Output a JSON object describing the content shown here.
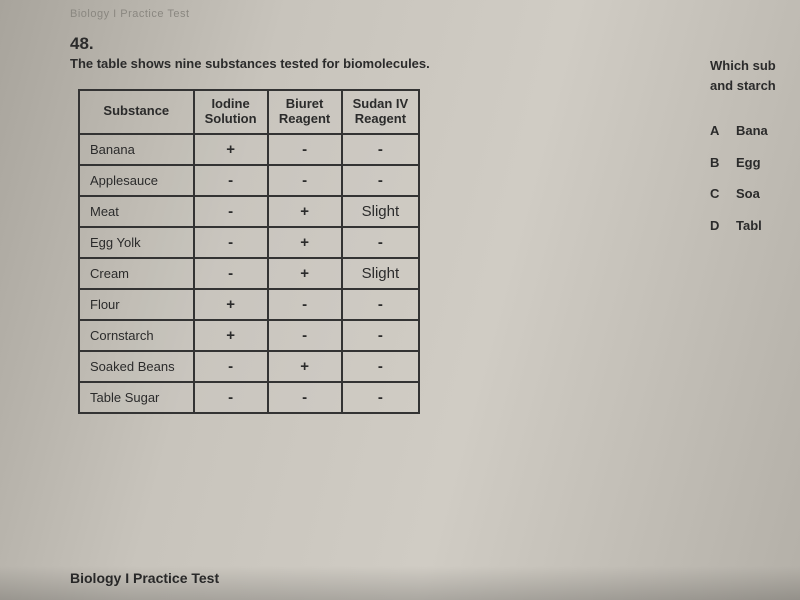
{
  "header_faint": "Biology I Practice Test",
  "question_number": "48.",
  "prompt": "The table shows nine substances tested for biomolecules.",
  "table": {
    "columns": [
      "Substance",
      "Iodine\nSolution",
      "Biuret\nReagent",
      "Sudan IV\nReagent"
    ],
    "rows": [
      [
        "Banana",
        "+",
        "-",
        "-"
      ],
      [
        "Applesauce",
        "-",
        "-",
        "-"
      ],
      [
        "Meat",
        "-",
        "+",
        "Slight"
      ],
      [
        "Egg Yolk",
        "-",
        "+",
        "-"
      ],
      [
        "Cream",
        "-",
        "+",
        "Slight"
      ],
      [
        "Flour",
        "+",
        "-",
        "-"
      ],
      [
        "Cornstarch",
        "+",
        "-",
        "-"
      ],
      [
        "Soaked Beans",
        "-",
        "+",
        "-"
      ],
      [
        "Table Sugar",
        "-",
        "-",
        "-"
      ]
    ]
  },
  "right": {
    "line1": "Which sub",
    "line2": "and starch",
    "options": [
      {
        "letter": "A",
        "text": "Bana"
      },
      {
        "letter": "B",
        "text": "Egg"
      },
      {
        "letter": "C",
        "text": "Soa"
      },
      {
        "letter": "D",
        "text": "Tabl"
      }
    ]
  },
  "footer": "Biology I Practice Test"
}
